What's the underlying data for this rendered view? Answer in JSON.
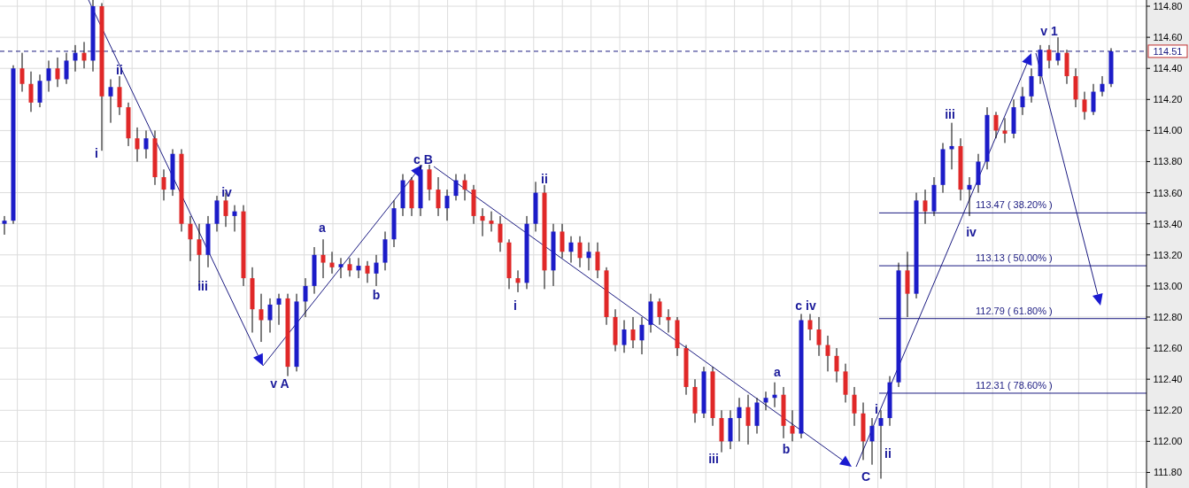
{
  "chart_data": {
    "type": "candlestick",
    "categories": [
      null,
      null,
      null,
      null,
      null,
      null,
      null,
      null,
      null,
      null,
      null,
      null,
      null,
      null,
      null,
      null,
      null,
      null,
      null,
      null,
      null,
      null,
      null,
      null,
      null,
      null,
      null,
      null,
      null,
      null,
      null,
      null,
      null,
      null,
      null,
      null,
      null,
      null,
      null,
      null,
      null,
      null,
      null,
      null,
      null,
      null,
      null,
      null,
      null,
      null,
      null,
      null,
      null,
      null,
      null,
      null,
      null,
      null,
      null,
      null,
      null,
      null,
      null,
      null,
      null,
      null,
      null,
      null,
      null,
      null,
      null,
      null,
      null,
      null,
      null,
      null,
      null,
      null,
      null,
      null,
      null,
      null,
      null,
      null,
      null,
      null,
      null,
      null,
      null,
      null,
      null,
      null,
      null,
      null,
      null,
      null,
      null,
      null,
      null,
      null,
      null,
      null,
      null,
      null,
      null,
      null,
      null,
      null,
      null,
      null,
      null,
      null,
      null,
      null,
      null,
      null,
      null,
      null,
      null,
      null,
      null,
      null,
      null,
      null,
      null,
      null
    ],
    "ohlc": [
      [
        113.4,
        113.45,
        113.33,
        113.42
      ],
      [
        113.42,
        114.42,
        113.4,
        114.4
      ],
      [
        114.4,
        114.5,
        114.25,
        114.3
      ],
      [
        114.3,
        114.38,
        114.12,
        114.18
      ],
      [
        114.18,
        114.36,
        114.15,
        114.32
      ],
      [
        114.32,
        114.45,
        114.25,
        114.4
      ],
      [
        114.4,
        114.47,
        114.28,
        114.33
      ],
      [
        114.33,
        114.5,
        114.3,
        114.45
      ],
      [
        114.45,
        114.55,
        114.38,
        114.5
      ],
      [
        114.5,
        114.57,
        114.4,
        114.45
      ],
      [
        114.45,
        114.84,
        114.38,
        114.8
      ],
      [
        114.8,
        114.82,
        113.87,
        114.22
      ],
      [
        114.22,
        114.33,
        114.05,
        114.28
      ],
      [
        114.28,
        114.35,
        114.1,
        114.15
      ],
      [
        114.15,
        114.18,
        113.9,
        113.95
      ],
      [
        113.95,
        114.02,
        113.8,
        113.88
      ],
      [
        113.88,
        114.0,
        113.82,
        113.95
      ],
      [
        113.95,
        114.0,
        113.65,
        113.7
      ],
      [
        113.7,
        113.75,
        113.55,
        113.62
      ],
      [
        113.62,
        113.88,
        113.58,
        113.85
      ],
      [
        113.85,
        113.88,
        113.35,
        113.4
      ],
      [
        113.4,
        113.45,
        113.16,
        113.3
      ],
      [
        113.3,
        113.4,
        113.0,
        113.2
      ],
      [
        113.2,
        113.45,
        113.12,
        113.4
      ],
      [
        113.4,
        113.58,
        113.35,
        113.55
      ],
      [
        113.55,
        113.6,
        113.38,
        113.45
      ],
      [
        113.45,
        113.52,
        113.35,
        113.48
      ],
      [
        113.48,
        113.52,
        113.0,
        113.05
      ],
      [
        113.05,
        113.12,
        112.7,
        112.85
      ],
      [
        112.85,
        112.95,
        112.64,
        112.78
      ],
      [
        112.78,
        112.92,
        112.7,
        112.88
      ],
      [
        112.88,
        112.95,
        112.75,
        112.92
      ],
      [
        112.92,
        112.95,
        112.42,
        112.48
      ],
      [
        112.48,
        112.95,
        112.45,
        112.9
      ],
      [
        112.9,
        113.05,
        112.8,
        113.0
      ],
      [
        113.0,
        113.25,
        112.95,
        113.2
      ],
      [
        113.2,
        113.3,
        113.05,
        113.15
      ],
      [
        113.15,
        113.22,
        113.08,
        113.12
      ],
      [
        113.12,
        113.18,
        113.05,
        113.14
      ],
      [
        113.14,
        113.18,
        113.06,
        113.1
      ],
      [
        113.1,
        113.18,
        113.05,
        113.13
      ],
      [
        113.13,
        113.16,
        113.02,
        113.08
      ],
      [
        113.08,
        113.2,
        113.0,
        113.15
      ],
      [
        113.15,
        113.35,
        113.1,
        113.3
      ],
      [
        113.3,
        113.55,
        113.25,
        113.5
      ],
      [
        113.5,
        113.72,
        113.45,
        113.68
      ],
      [
        113.68,
        113.7,
        113.45,
        113.5
      ],
      [
        113.5,
        113.78,
        113.45,
        113.75
      ],
      [
        113.75,
        113.78,
        113.55,
        113.62
      ],
      [
        113.62,
        113.7,
        113.45,
        113.5
      ],
      [
        113.5,
        113.62,
        113.42,
        113.58
      ],
      [
        113.58,
        113.72,
        113.55,
        113.68
      ],
      [
        113.68,
        113.72,
        113.55,
        113.62
      ],
      [
        113.62,
        113.65,
        113.4,
        113.45
      ],
      [
        113.45,
        113.5,
        113.32,
        113.42
      ],
      [
        113.42,
        113.48,
        113.35,
        113.4
      ],
      [
        113.4,
        113.45,
        113.22,
        113.28
      ],
      [
        113.28,
        113.3,
        112.98,
        113.05
      ],
      [
        113.05,
        113.1,
        112.96,
        113.02
      ],
      [
        113.02,
        113.45,
        112.98,
        113.4
      ],
      [
        113.4,
        113.67,
        113.35,
        113.6
      ],
      [
        113.6,
        113.65,
        112.98,
        113.1
      ],
      [
        113.1,
        113.4,
        113.0,
        113.35
      ],
      [
        113.35,
        113.4,
        113.18,
        113.22
      ],
      [
        113.22,
        113.32,
        113.15,
        113.28
      ],
      [
        113.28,
        113.32,
        113.12,
        113.18
      ],
      [
        113.18,
        113.28,
        113.1,
        113.22
      ],
      [
        113.22,
        113.28,
        113.05,
        113.1
      ],
      [
        113.1,
        113.12,
        112.75,
        112.8
      ],
      [
        112.8,
        112.85,
        112.58,
        112.62
      ],
      [
        112.62,
        112.78,
        112.57,
        112.72
      ],
      [
        112.72,
        112.8,
        112.6,
        112.65
      ],
      [
        112.65,
        112.8,
        112.56,
        112.75
      ],
      [
        112.75,
        112.95,
        112.7,
        112.9
      ],
      [
        112.9,
        112.92,
        112.75,
        112.8
      ],
      [
        112.8,
        112.85,
        112.7,
        112.78
      ],
      [
        112.78,
        112.8,
        112.55,
        112.6
      ],
      [
        112.6,
        112.62,
        112.3,
        112.35
      ],
      [
        112.35,
        112.4,
        112.12,
        112.18
      ],
      [
        112.18,
        112.48,
        112.15,
        112.45
      ],
      [
        112.45,
        112.48,
        112.1,
        112.15
      ],
      [
        112.15,
        112.2,
        111.93,
        112.0
      ],
      [
        112.0,
        112.2,
        111.95,
        112.15
      ],
      [
        112.15,
        112.28,
        112.0,
        112.22
      ],
      [
        112.22,
        112.3,
        111.98,
        112.1
      ],
      [
        112.1,
        112.28,
        112.05,
        112.25
      ],
      [
        112.25,
        112.32,
        112.2,
        112.28
      ],
      [
        112.28,
        112.38,
        112.22,
        112.3
      ],
      [
        112.3,
        112.35,
        112.02,
        112.1
      ],
      [
        112.1,
        112.2,
        112.0,
        112.05
      ],
      [
        112.05,
        112.82,
        112.02,
        112.78
      ],
      [
        112.78,
        112.82,
        112.65,
        112.72
      ],
      [
        112.72,
        112.8,
        112.55,
        112.62
      ],
      [
        112.62,
        112.68,
        112.45,
        112.55
      ],
      [
        112.55,
        112.6,
        112.38,
        112.45
      ],
      [
        112.45,
        112.5,
        112.25,
        112.3
      ],
      [
        112.3,
        112.35,
        112.1,
        112.18
      ],
      [
        112.18,
        112.25,
        111.88,
        112.0
      ],
      [
        112.0,
        112.15,
        111.85,
        112.1
      ],
      [
        112.1,
        112.2,
        111.76,
        112.15
      ],
      [
        112.15,
        112.42,
        112.1,
        112.38
      ],
      [
        112.38,
        113.15,
        112.35,
        113.1
      ],
      [
        113.1,
        113.22,
        112.8,
        112.95
      ],
      [
        112.95,
        113.6,
        112.92,
        113.55
      ],
      [
        113.55,
        113.62,
        113.4,
        113.48
      ],
      [
        113.48,
        113.7,
        113.45,
        113.65
      ],
      [
        113.65,
        113.92,
        113.6,
        113.88
      ],
      [
        113.88,
        114.05,
        113.75,
        113.9
      ],
      [
        113.9,
        113.95,
        113.55,
        113.62
      ],
      [
        113.62,
        113.7,
        113.45,
        113.65
      ],
      [
        113.65,
        113.85,
        113.6,
        113.8
      ],
      [
        113.8,
        114.15,
        113.75,
        114.1
      ],
      [
        114.1,
        114.12,
        113.95,
        114.0
      ],
      [
        114.0,
        114.08,
        113.92,
        113.98
      ],
      [
        113.98,
        114.2,
        113.95,
        114.15
      ],
      [
        114.15,
        114.28,
        114.1,
        114.22
      ],
      [
        114.22,
        114.4,
        114.18,
        114.35
      ],
      [
        114.35,
        114.55,
        114.3,
        114.52
      ],
      [
        114.52,
        114.55,
        114.4,
        114.45
      ],
      [
        114.45,
        114.6,
        114.42,
        114.5
      ],
      [
        114.5,
        114.52,
        114.3,
        114.35
      ],
      [
        114.35,
        114.4,
        114.15,
        114.2
      ],
      [
        114.2,
        114.25,
        114.07,
        114.12
      ],
      [
        114.12,
        114.3,
        114.1,
        114.25
      ],
      [
        114.25,
        114.35,
        114.22,
        114.3
      ],
      [
        114.3,
        114.53,
        114.28,
        114.51
      ]
    ],
    "colors": [
      "#1c1cc8",
      "#1c1cc8",
      "#e02828",
      "#e02828",
      "#1c1cc8",
      "#1c1cc8",
      "#e02828",
      "#1c1cc8",
      "#1c1cc8",
      "#e02828",
      "#1c1cc8",
      "#e02828",
      "#1c1cc8",
      "#e02828",
      "#e02828",
      "#e02828",
      "#1c1cc8",
      "#e02828",
      "#e02828",
      "#1c1cc8",
      "#e02828",
      "#e02828",
      "#e02828",
      "#1c1cc8",
      "#1c1cc8",
      "#e02828",
      "#1c1cc8",
      "#e02828",
      "#e02828",
      "#e02828",
      "#1c1cc8",
      "#1c1cc8",
      "#e02828",
      "#1c1cc8",
      "#1c1cc8",
      "#1c1cc8",
      "#e02828",
      "#e02828",
      "#1c1cc8",
      "#e02828",
      "#1c1cc8",
      "#e02828",
      "#1c1cc8",
      "#1c1cc8",
      "#1c1cc8",
      "#1c1cc8",
      "#e02828",
      "#1c1cc8",
      "#e02828",
      "#e02828",
      "#1c1cc8",
      "#1c1cc8",
      "#e02828",
      "#e02828",
      "#e02828",
      "#e02828",
      "#e02828",
      "#e02828",
      "#e02828",
      "#1c1cc8",
      "#1c1cc8",
      "#e02828",
      "#1c1cc8",
      "#e02828",
      "#1c1cc8",
      "#e02828",
      "#1c1cc8",
      "#e02828",
      "#e02828",
      "#e02828",
      "#1c1cc8",
      "#e02828",
      "#1c1cc8",
      "#1c1cc8",
      "#e02828",
      "#e02828",
      "#e02828",
      "#e02828",
      "#e02828",
      "#1c1cc8",
      "#e02828",
      "#e02828",
      "#1c1cc8",
      "#1c1cc8",
      "#e02828",
      "#1c1cc8",
      "#1c1cc8",
      "#1c1cc8",
      "#e02828",
      "#e02828",
      "#1c1cc8",
      "#e02828",
      "#e02828",
      "#e02828",
      "#e02828",
      "#e02828",
      "#e02828",
      "#e02828",
      "#1c1cc8",
      "#1c1cc8",
      "#1c1cc8",
      "#1c1cc8",
      "#e02828",
      "#1c1cc8",
      "#e02828",
      "#1c1cc8",
      "#1c1cc8",
      "#1c1cc8",
      "#e02828",
      "#1c1cc8",
      "#1c1cc8",
      "#1c1cc8",
      "#e02828",
      "#e02828",
      "#1c1cc8",
      "#1c1cc8",
      "#1c1cc8",
      "#1c1cc8",
      "#e02828",
      "#1c1cc8",
      "#e02828",
      "#e02828",
      "#e02828",
      "#1c1cc8",
      "#1c1cc8",
      "#1c1cc8"
    ],
    "ylim": [
      111.7,
      114.84
    ],
    "yticks": [
      {
        "value": 111.8,
        "label": "111.80"
      },
      {
        "value": 112.0,
        "label": "112.00"
      },
      {
        "value": 112.2,
        "label": "112.20"
      },
      {
        "value": 112.4,
        "label": "112.40"
      },
      {
        "value": 112.6,
        "label": "112.60"
      },
      {
        "value": 112.8,
        "label": "112.80"
      },
      {
        "value": 113.0,
        "label": "113.00"
      },
      {
        "value": 113.2,
        "label": "113.20"
      },
      {
        "value": 113.4,
        "label": "113.40"
      },
      {
        "value": 113.6,
        "label": "113.60"
      },
      {
        "value": 113.8,
        "label": "113.80"
      },
      {
        "value": 114.0,
        "label": "114.00"
      },
      {
        "value": 114.2,
        "label": "114.20"
      },
      {
        "value": 114.4,
        "label": "114.40"
      },
      {
        "value": 114.6,
        "label": "114.60"
      },
      {
        "value": 114.8,
        "label": "114.80"
      }
    ],
    "grid": true,
    "ref_lines": [
      {
        "axis": "y",
        "value": 114.51,
        "label": "114.51",
        "line_style": "dashed",
        "color": "#1a1a80"
      },
      {
        "axis": "y",
        "value": 113.47,
        "label": "113.47 ( 38.20% )",
        "color": "#1a1a80"
      },
      {
        "axis": "y",
        "value": 113.13,
        "label": "113.13 ( 50.00% )",
        "color": "#1a1a80"
      },
      {
        "axis": "y",
        "value": 112.79,
        "label": "112.79 ( 61.80% )",
        "color": "#1a1a80"
      },
      {
        "axis": "y",
        "value": 112.31,
        "label": "112.31 ( 78.60% )",
        "color": "#1a1a80"
      }
    ],
    "annotations": [
      "i",
      "ii",
      "iii",
      "iv",
      "v A",
      "a",
      "b",
      "c B",
      "i",
      "ii",
      "iii",
      "a",
      "b",
      "c iv",
      "C",
      "i",
      "ii",
      "iii",
      "iv",
      "v 1"
    ]
  }
}
